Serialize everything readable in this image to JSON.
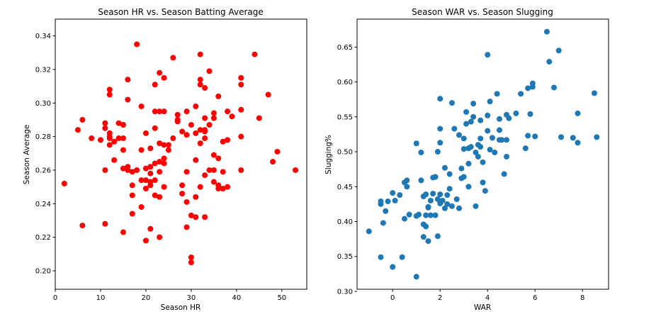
{
  "chart_data": [
    {
      "type": "scatter",
      "title": "Season HR vs. Season Batting Average",
      "xlabel": "Season HR",
      "ylabel": "Season Average",
      "xlim": [
        0,
        55.5
      ],
      "ylim": [
        0.189,
        0.35
      ],
      "xticks": [
        0,
        10,
        20,
        30,
        40,
        50
      ],
      "xtick_labels": [
        "0",
        "10",
        "20",
        "30",
        "40",
        "50"
      ],
      "yticks": [
        0.2,
        0.22,
        0.24,
        0.26,
        0.28,
        0.3,
        0.32,
        0.34
      ],
      "ytick_labels": [
        "0.20",
        "0.22",
        "0.24",
        "0.26",
        "0.28",
        "0.30",
        "0.32",
        "0.34"
      ],
      "grid": false,
      "color": "#ff0000",
      "x": [
        2,
        5,
        6,
        6,
        8,
        10,
        11,
        11,
        11,
        11,
        12,
        12,
        12,
        12,
        12,
        12,
        13,
        13,
        14,
        14,
        15,
        15,
        15,
        15,
        15,
        15,
        16,
        16,
        16,
        16,
        17,
        17,
        17,
        17,
        18,
        18,
        19,
        19,
        19,
        19,
        20,
        20,
        20,
        20,
        20,
        21,
        21,
        21,
        21,
        21,
        21,
        22,
        22,
        22,
        22,
        22,
        22,
        23,
        23,
        23,
        23,
        23,
        23,
        23,
        24,
        24,
        24,
        24,
        24,
        24,
        25,
        25,
        26,
        26,
        27,
        27,
        27,
        28,
        28,
        28,
        29,
        29,
        29,
        29,
        29,
        30,
        30,
        30,
        30,
        31,
        31,
        31,
        31,
        31,
        32,
        32,
        32,
        32,
        32,
        32,
        33,
        33,
        33,
        33,
        33,
        33,
        33,
        34,
        34,
        34,
        35,
        35,
        35,
        35,
        35,
        36,
        36,
        36,
        36,
        37,
        37,
        37,
        38,
        38,
        38,
        39,
        41,
        41,
        41,
        41,
        41,
        44,
        45,
        47,
        48,
        49,
        53
      ],
      "y": [
        0.252,
        0.284,
        0.29,
        0.227,
        0.279,
        0.278,
        0.285,
        0.288,
        0.26,
        0.228,
        0.308,
        0.305,
        0.282,
        0.28,
        0.279,
        0.275,
        0.277,
        0.266,
        0.288,
        0.279,
        0.287,
        0.279,
        0.272,
        0.261,
        0.223,
        0.287,
        0.314,
        0.302,
        0.26,
        0.262,
        0.259,
        0.251,
        0.245,
        0.234,
        0.335,
        0.26,
        0.298,
        0.272,
        0.254,
        0.238,
        0.282,
        0.261,
        0.254,
        0.249,
        0.218,
        0.273,
        0.262,
        0.258,
        0.253,
        0.251,
        0.225,
        0.311,
        0.295,
        0.285,
        0.264,
        0.254,
        0.245,
        0.318,
        0.295,
        0.276,
        0.265,
        0.259,
        0.244,
        0.22,
        0.295,
        0.275,
        0.267,
        0.264,
        0.25,
        0.315,
        0.275,
        0.272,
        0.327,
        0.279,
        0.293,
        0.29,
        0.289,
        0.283,
        0.251,
        0.246,
        0.295,
        0.281,
        0.259,
        0.241,
        0.226,
        0.233,
        0.208,
        0.205,
        0.287,
        0.298,
        0.282,
        0.266,
        0.244,
        0.232,
        0.329,
        0.314,
        0.311,
        0.284,
        0.276,
        0.25,
        0.309,
        0.291,
        0.284,
        0.283,
        0.279,
        0.257,
        0.232,
        0.319,
        0.287,
        0.26,
        0.294,
        0.291,
        0.269,
        0.26,
        0.253,
        0.304,
        0.267,
        0.251,
        0.249,
        0.277,
        0.259,
        0.249,
        0.295,
        0.278,
        0.25,
        0.292,
        0.315,
        0.311,
        0.296,
        0.28,
        0.26,
        0.329,
        0.291,
        0.305,
        0.265,
        0.271,
        0.26
      ]
    },
    {
      "type": "scatter",
      "title": "Season WAR vs. Season Slugging",
      "xlabel": "WAR",
      "ylabel": "Slugging%",
      "xlim": [
        -1.5,
        9.1
      ],
      "ylim": [
        0.303,
        0.69
      ],
      "xticks": [
        0,
        2,
        4,
        6,
        8
      ],
      "xtick_labels": [
        "0",
        "2",
        "4",
        "6",
        "8"
      ],
      "yticks": [
        0.3,
        0.35,
        0.4,
        0.45,
        0.5,
        0.55,
        0.6,
        0.65
      ],
      "ytick_labels": [
        "0.30",
        "0.35",
        "0.40",
        "0.45",
        "0.50",
        "0.55",
        "0.60",
        "0.65"
      ],
      "grid": false,
      "color": "#1f77b4",
      "x": [
        -1.0,
        -0.5,
        -0.5,
        -0.5,
        -0.4,
        -0.3,
        -0.2,
        0.0,
        0.0,
        0.1,
        0.3,
        0.4,
        0.5,
        0.5,
        0.6,
        0.6,
        0.7,
        1.0,
        1.0,
        1.0,
        1.1,
        1.2,
        1.2,
        1.3,
        1.3,
        1.3,
        1.4,
        1.4,
        1.4,
        1.5,
        1.5,
        1.5,
        1.6,
        1.6,
        1.7,
        1.7,
        1.8,
        1.8,
        1.9,
        1.9,
        1.9,
        2.0,
        2.0,
        2.0,
        2.0,
        2.0,
        2.1,
        2.2,
        2.2,
        2.3,
        2.3,
        2.4,
        2.4,
        2.5,
        2.5,
        2.6,
        2.7,
        2.8,
        2.8,
        2.9,
        2.9,
        3.0,
        3.0,
        3.0,
        3.1,
        3.1,
        3.2,
        3.2,
        3.2,
        3.3,
        3.3,
        3.4,
        3.4,
        3.5,
        3.5,
        3.6,
        3.6,
        3.7,
        3.7,
        3.7,
        3.8,
        3.8,
        3.9,
        4.0,
        4.0,
        4.0,
        4.1,
        4.1,
        4.2,
        4.3,
        4.4,
        4.5,
        4.5,
        4.5,
        4.6,
        4.7,
        4.8,
        4.8,
        4.8,
        4.9,
        5.2,
        5.4,
        5.6,
        5.7,
        5.7,
        5.8,
        5.9,
        5.9,
        6.0,
        6.5,
        6.6,
        6.8,
        7.0,
        7.1,
        7.6,
        7.8,
        7.8,
        8.5,
        8.6
      ],
      "y": [
        0.386,
        0.349,
        0.425,
        0.429,
        0.398,
        0.415,
        0.429,
        0.441,
        0.335,
        0.43,
        0.438,
        0.349,
        0.404,
        0.456,
        0.45,
        0.459,
        0.41,
        0.321,
        0.408,
        0.512,
        0.41,
        0.459,
        0.499,
        0.436,
        0.378,
        0.396,
        0.409,
        0.439,
        0.393,
        0.372,
        0.42,
        0.421,
        0.43,
        0.409,
        0.463,
        0.44,
        0.464,
        0.409,
        0.5,
        0.379,
        0.432,
        0.576,
        0.513,
        0.533,
        0.439,
        0.426,
        0.43,
        0.477,
        0.419,
        0.425,
        0.438,
        0.447,
        0.468,
        0.57,
        0.422,
        0.533,
        0.432,
        0.524,
        0.419,
        0.476,
        0.462,
        0.504,
        0.519,
        0.464,
        0.557,
        0.54,
        0.483,
        0.505,
        0.45,
        0.507,
        0.543,
        0.569,
        0.55,
        0.499,
        0.422,
        0.51,
        0.493,
        0.545,
        0.519,
        0.507,
        0.485,
        0.456,
        0.444,
        0.639,
        0.552,
        0.53,
        0.572,
        0.503,
        0.52,
        0.499,
        0.583,
        0.547,
        0.531,
        0.517,
        0.517,
        0.468,
        0.517,
        0.553,
        0.493,
        0.548,
        0.555,
        0.583,
        0.505,
        0.591,
        0.523,
        0.554,
        0.598,
        0.593,
        0.522,
        0.672,
        0.629,
        0.592,
        0.645,
        0.521,
        0.52,
        0.513,
        0.555,
        0.584,
        0.521
      ]
    }
  ]
}
